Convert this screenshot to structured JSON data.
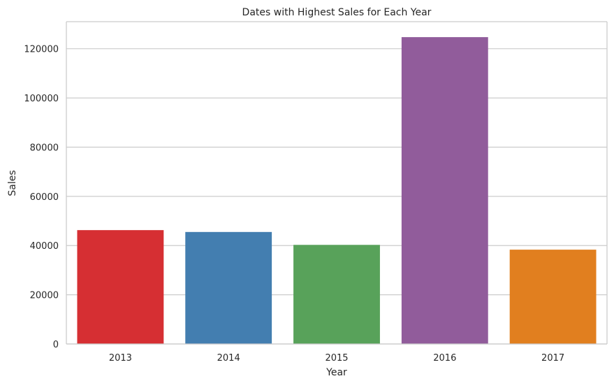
{
  "chart_data": {
    "type": "bar",
    "title": "Dates with Highest Sales for Each Year",
    "xlabel": "Year",
    "ylabel": "Sales",
    "categories": [
      "2013",
      "2014",
      "2015",
      "2016",
      "2017"
    ],
    "values": [
      46271,
      45516,
      40275,
      124717,
      38330
    ],
    "colors": [
      "#d62f33",
      "#437eb0",
      "#58a25a",
      "#915c9b",
      "#e17f1f"
    ],
    "ylim": [
      0,
      131000
    ],
    "yticks": [
      0,
      20000,
      40000,
      60000,
      80000,
      100000,
      120000
    ],
    "grid": "horizontal",
    "style": {
      "grid_color": "#cccccc",
      "spine_color": "#cccccc",
      "background": "#ffffff"
    }
  }
}
